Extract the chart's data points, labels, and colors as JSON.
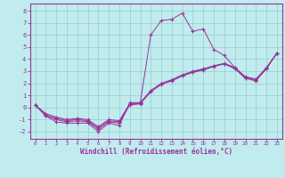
{
  "xlabel": "Windchill (Refroidissement éolien,°C)",
  "xlim": [
    -0.5,
    23.5
  ],
  "ylim": [
    -2.6,
    8.6
  ],
  "yticks": [
    -2,
    -1,
    0,
    1,
    2,
    3,
    4,
    5,
    6,
    7,
    8
  ],
  "xticks": [
    0,
    1,
    2,
    3,
    4,
    5,
    6,
    7,
    8,
    9,
    10,
    11,
    12,
    13,
    14,
    15,
    16,
    17,
    18,
    19,
    20,
    21,
    22,
    23
  ],
  "bg_color": "#c0ecee",
  "line_color": "#993399",
  "grid_color": "#99cccc",
  "axis_bar_color": "#660066",
  "series": [
    [
      0.2,
      -0.7,
      -1.2,
      -1.3,
      -1.3,
      -1.3,
      -2.0,
      -1.3,
      -1.5,
      0.4,
      0.4,
      6.0,
      7.2,
      7.3,
      7.8,
      6.3,
      6.5,
      4.8,
      4.3,
      3.3,
      2.5,
      2.3,
      3.3,
      4.5
    ],
    [
      0.2,
      -0.7,
      -1.0,
      -1.2,
      -1.1,
      -1.2,
      -1.8,
      -1.2,
      -1.3,
      0.2,
      0.3,
      1.3,
      1.9,
      2.2,
      2.6,
      2.9,
      3.1,
      3.4,
      3.6,
      3.2,
      2.4,
      2.2,
      3.2,
      4.5
    ],
    [
      0.2,
      -0.5,
      -0.8,
      -1.0,
      -0.9,
      -1.0,
      -1.6,
      -1.0,
      -1.1,
      0.3,
      0.4,
      1.4,
      2.0,
      2.3,
      2.7,
      3.0,
      3.2,
      3.45,
      3.65,
      3.3,
      2.55,
      2.35,
      3.25,
      4.5
    ],
    [
      0.2,
      -0.6,
      -0.9,
      -1.1,
      -1.0,
      -1.1,
      -1.7,
      -1.1,
      -1.2,
      0.25,
      0.35,
      1.35,
      1.95,
      2.25,
      2.65,
      2.95,
      3.15,
      3.42,
      3.62,
      3.25,
      2.5,
      2.28,
      3.22,
      4.5
    ]
  ]
}
